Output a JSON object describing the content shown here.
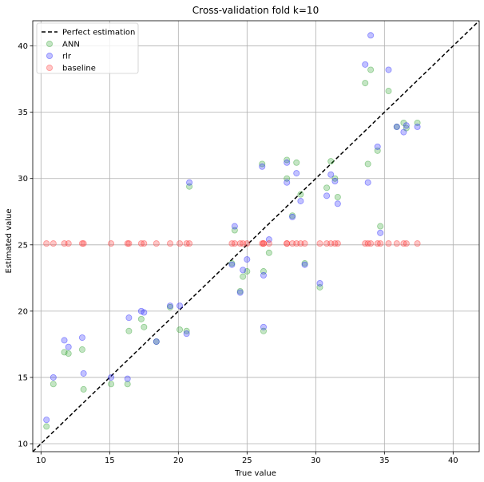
{
  "chart_data": {
    "type": "scatter",
    "title": "Cross-validation fold k=10",
    "xlabel": "True value",
    "ylabel": "Estimated value",
    "xlim": [
      9.4,
      41.9
    ],
    "ylim": [
      9.4,
      41.9
    ],
    "xticks": [
      10,
      15,
      20,
      25,
      30,
      35,
      40
    ],
    "yticks": [
      10,
      15,
      20,
      25,
      30,
      35,
      40
    ],
    "grid": true,
    "legend_position": "top-left",
    "reference_line": {
      "name": "Perfect estimation",
      "color": "#000000",
      "style": "dashed",
      "points": [
        [
          9.4,
          9.4
        ],
        [
          41.9,
          41.9
        ]
      ]
    },
    "series": [
      {
        "name": "ANN",
        "color": "#2ca02c",
        "points": [
          [
            10.4,
            11.3
          ],
          [
            10.9,
            14.5
          ],
          [
            11.7,
            16.9
          ],
          [
            12.0,
            16.8
          ],
          [
            13.0,
            17.1
          ],
          [
            13.1,
            14.1
          ],
          [
            15.1,
            14.5
          ],
          [
            16.3,
            14.5
          ],
          [
            16.4,
            18.5
          ],
          [
            17.3,
            19.4
          ],
          [
            17.5,
            18.8
          ],
          [
            18.4,
            17.7
          ],
          [
            19.4,
            20.3
          ],
          [
            20.1,
            18.6
          ],
          [
            20.6,
            18.5
          ],
          [
            20.8,
            29.4
          ],
          [
            23.9,
            23.6
          ],
          [
            24.1,
            26.1
          ],
          [
            24.5,
            21.5
          ],
          [
            24.7,
            22.6
          ],
          [
            25.0,
            23.0
          ],
          [
            26.1,
            31.1
          ],
          [
            26.2,
            18.5
          ],
          [
            26.2,
            23.0
          ],
          [
            26.6,
            24.4
          ],
          [
            27.9,
            31.4
          ],
          [
            27.9,
            30.0
          ],
          [
            28.3,
            27.2
          ],
          [
            28.6,
            31.2
          ],
          [
            28.9,
            28.8
          ],
          [
            29.2,
            23.6
          ],
          [
            30.3,
            21.8
          ],
          [
            30.8,
            29.3
          ],
          [
            31.1,
            31.3
          ],
          [
            31.4,
            30.0
          ],
          [
            31.6,
            28.6
          ],
          [
            33.6,
            37.2
          ],
          [
            33.8,
            31.1
          ],
          [
            34.0,
            38.2
          ],
          [
            34.5,
            32.1
          ],
          [
            34.7,
            26.4
          ],
          [
            35.3,
            36.6
          ],
          [
            35.9,
            33.9
          ],
          [
            36.4,
            34.2
          ],
          [
            36.6,
            33.8
          ],
          [
            37.4,
            34.2
          ]
        ]
      },
      {
        "name": "rlr",
        "color": "#1f1fff",
        "points": [
          [
            10.4,
            11.8
          ],
          [
            10.9,
            15.0
          ],
          [
            11.7,
            17.8
          ],
          [
            12.0,
            17.3
          ],
          [
            13.0,
            18.0
          ],
          [
            13.1,
            15.3
          ],
          [
            15.1,
            15.0
          ],
          [
            16.3,
            14.9
          ],
          [
            16.4,
            19.5
          ],
          [
            17.3,
            20.0
          ],
          [
            17.5,
            19.9
          ],
          [
            18.4,
            17.7
          ],
          [
            19.4,
            20.4
          ],
          [
            20.1,
            20.4
          ],
          [
            20.6,
            18.3
          ],
          [
            20.8,
            29.7
          ],
          [
            23.9,
            23.5
          ],
          [
            24.1,
            26.4
          ],
          [
            24.5,
            21.4
          ],
          [
            24.7,
            23.1
          ],
          [
            25.0,
            23.9
          ],
          [
            26.1,
            30.9
          ],
          [
            26.2,
            18.8
          ],
          [
            26.2,
            22.7
          ],
          [
            26.6,
            25.4
          ],
          [
            27.9,
            31.2
          ],
          [
            27.9,
            29.7
          ],
          [
            28.3,
            27.1
          ],
          [
            28.6,
            30.4
          ],
          [
            28.9,
            28.3
          ],
          [
            29.2,
            23.5
          ],
          [
            30.3,
            22.1
          ],
          [
            30.8,
            28.7
          ],
          [
            31.1,
            30.3
          ],
          [
            31.4,
            29.8
          ],
          [
            31.6,
            28.1
          ],
          [
            33.6,
            38.6
          ],
          [
            33.8,
            29.7
          ],
          [
            34.0,
            40.8
          ],
          [
            34.5,
            32.4
          ],
          [
            34.7,
            25.9
          ],
          [
            35.3,
            38.2
          ],
          [
            35.9,
            33.9
          ],
          [
            36.4,
            33.5
          ],
          [
            36.6,
            34.0
          ],
          [
            37.4,
            33.9
          ]
        ]
      },
      {
        "name": "baseline",
        "color": "#ff3333",
        "points": [
          [
            10.4,
            25.1
          ],
          [
            10.9,
            25.1
          ],
          [
            11.7,
            25.1
          ],
          [
            12.0,
            25.1
          ],
          [
            13.0,
            25.1
          ],
          [
            13.1,
            25.1
          ],
          [
            15.1,
            25.1
          ],
          [
            16.3,
            25.1
          ],
          [
            16.4,
            25.1
          ],
          [
            17.3,
            25.1
          ],
          [
            17.5,
            25.1
          ],
          [
            18.4,
            25.1
          ],
          [
            19.4,
            25.1
          ],
          [
            20.1,
            25.1
          ],
          [
            20.6,
            25.1
          ],
          [
            20.8,
            25.1
          ],
          [
            23.9,
            25.1
          ],
          [
            24.1,
            25.1
          ],
          [
            24.5,
            25.1
          ],
          [
            24.7,
            25.1
          ],
          [
            25.0,
            25.1
          ],
          [
            26.1,
            25.1
          ],
          [
            26.2,
            25.1
          ],
          [
            26.2,
            25.1
          ],
          [
            26.6,
            25.1
          ],
          [
            27.9,
            25.1
          ],
          [
            27.9,
            25.1
          ],
          [
            28.3,
            25.1
          ],
          [
            28.6,
            25.1
          ],
          [
            28.9,
            25.1
          ],
          [
            29.2,
            25.1
          ],
          [
            30.3,
            25.1
          ],
          [
            30.8,
            25.1
          ],
          [
            31.1,
            25.1
          ],
          [
            31.4,
            25.1
          ],
          [
            31.6,
            25.1
          ],
          [
            33.6,
            25.1
          ],
          [
            33.8,
            25.1
          ],
          [
            34.0,
            25.1
          ],
          [
            34.5,
            25.1
          ],
          [
            34.7,
            25.1
          ],
          [
            35.3,
            25.1
          ],
          [
            35.9,
            25.1
          ],
          [
            36.4,
            25.1
          ],
          [
            36.6,
            25.1
          ],
          [
            37.4,
            25.1
          ]
        ]
      }
    ]
  }
}
